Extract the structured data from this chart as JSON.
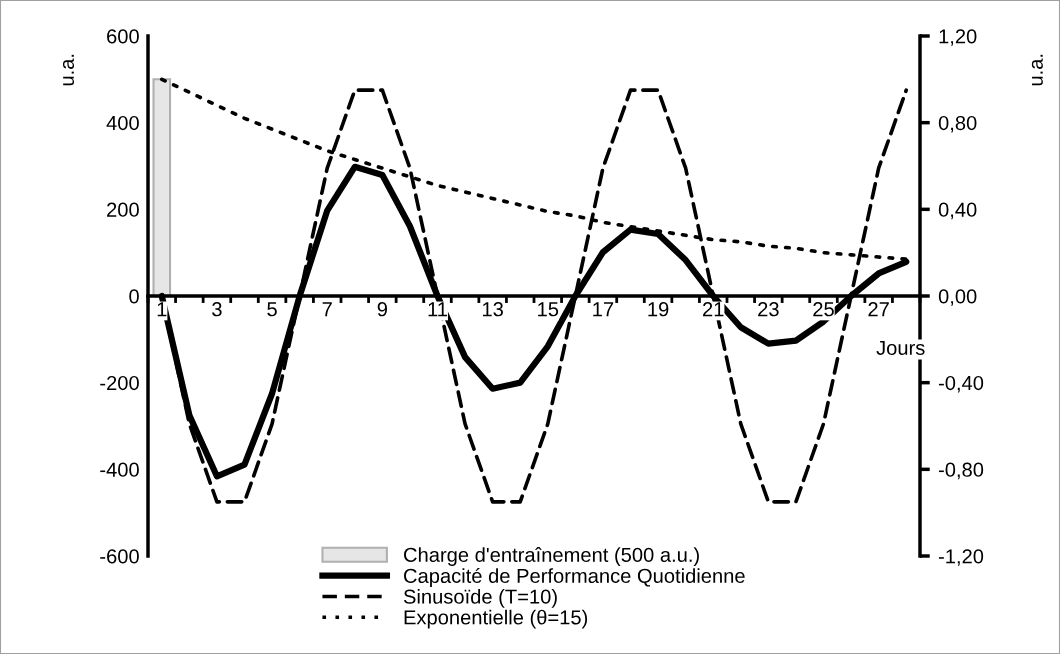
{
  "chart_data": {
    "type": "line",
    "categories": [
      "1",
      null,
      "3",
      null,
      "5",
      null,
      "7",
      null,
      "9",
      null,
      "11",
      null,
      "13",
      null,
      "15",
      null,
      "17",
      null,
      "19",
      null,
      "21",
      null,
      "23",
      null,
      "25",
      null,
      "27",
      null
    ],
    "xlabel": "Jours",
    "ylabel": "u.a.",
    "y2label": "u.a.",
    "ylim": [
      -600,
      600
    ],
    "yticks": [
      -600,
      -400,
      -200,
      0,
      200,
      400,
      600
    ],
    "y2lim": [
      -1.2,
      1.2
    ],
    "y2ticks": [
      {
        "value": -1.2,
        "label": "-1,20"
      },
      {
        "value": -0.8,
        "label": "-0,80"
      },
      {
        "value": -0.4,
        "label": "-0,40"
      },
      {
        "value": 0,
        "label": "0,00"
      },
      {
        "value": 0.4,
        "label": "0,40"
      },
      {
        "value": 0.8,
        "label": "0,80"
      },
      {
        "value": 1.2,
        "label": "1,20"
      }
    ],
    "grid": false,
    "legend": "bottom",
    "series": [
      {
        "name": "Charge d'entraînement (500 a.u.)",
        "type": "bar",
        "color": "#e6e6e6",
        "values": [
          500,
          null,
          null,
          null,
          null,
          null,
          null,
          null,
          null,
          null,
          null,
          null,
          null,
          null,
          null,
          null,
          null,
          null,
          null,
          null,
          null,
          null,
          null,
          null,
          null,
          null,
          null,
          null
        ]
      },
      {
        "name": "Capacité de Performance Quotidienne",
        "color": "#000000",
        "line_style": "solid",
        "values": [
          0,
          -275,
          -416,
          -389,
          -225,
          0,
          197,
          298,
          279,
          161,
          0,
          -141,
          -214,
          -200,
          -116,
          0,
          101,
          153,
          143,
          83,
          0,
          -72,
          -110,
          -103,
          -59,
          0,
          52,
          79
        ]
      },
      {
        "name": "Sinusoïde (T=10)",
        "axis": "y2",
        "color": "#000000",
        "line_style": "dashed",
        "values": [
          0,
          -0.59,
          -0.95,
          -0.95,
          -0.59,
          0,
          0.59,
          0.95,
          0.95,
          0.59,
          0,
          -0.59,
          -0.95,
          -0.95,
          -0.59,
          0,
          0.59,
          0.95,
          0.95,
          0.59,
          0,
          -0.59,
          -0.95,
          -0.95,
          -0.59,
          0,
          0.59,
          0.95
        ]
      },
      {
        "name": "Exponentielle (θ=15)",
        "axis": "y2",
        "color": "#000000",
        "line_style": "dotted",
        "values": [
          1.0,
          0.94,
          0.88,
          0.82,
          0.77,
          0.72,
          0.67,
          0.63,
          0.59,
          0.55,
          0.51,
          0.48,
          0.45,
          0.42,
          0.39,
          0.37,
          0.34,
          0.32,
          0.3,
          0.28,
          0.26,
          0.25,
          0.23,
          0.22,
          0.2,
          0.19,
          0.18,
          0.17
        ]
      }
    ]
  }
}
